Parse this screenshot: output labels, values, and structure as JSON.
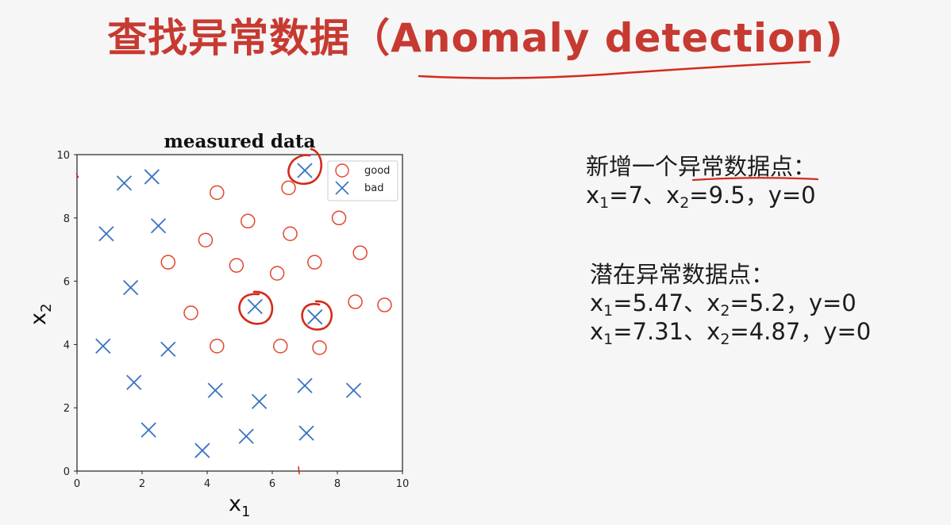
{
  "slide": {
    "title": "查找异常数据（Anomaly detection)"
  },
  "info": {
    "new_point": {
      "heading": "新增一个异常数据点：",
      "line": {
        "x1_label": "x",
        "x1_sub": "1",
        "x1_val": "=7、",
        "x2_label": "x",
        "x2_sub": "2",
        "x2_val": "=9.5，y=0"
      }
    },
    "potential": {
      "heading": "潜在异常数据点：",
      "lines": [
        {
          "x1_label": "x",
          "x1_sub": "1",
          "x1_val": "=5.47、",
          "x2_label": "x",
          "x2_sub": "2",
          "x2_val": "=5.2，y=0"
        },
        {
          "x1_label": "x",
          "x1_sub": "1",
          "x1_val": "=7.31、",
          "x2_label": "x",
          "x2_sub": "2",
          "x2_val": "=4.87，y=0"
        }
      ]
    }
  },
  "colors": {
    "title": "#c73a31",
    "good": "#e2462d",
    "bad": "#3a73bf",
    "annotation": "#d42a1c",
    "text": "#1c1c1c"
  },
  "chart_data": {
    "type": "scatter",
    "title": "measured data",
    "xlabel": "x",
    "xlabel_sub": "1",
    "ylabel": "x",
    "ylabel_sub": "2",
    "xlim": [
      0,
      10
    ],
    "ylim": [
      0,
      10
    ],
    "xticks": [
      0,
      2,
      4,
      6,
      8,
      10
    ],
    "yticks": [
      0,
      2,
      4,
      6,
      8,
      10
    ],
    "grid": false,
    "legend_position": "top-right",
    "series": [
      {
        "name": "good",
        "marker": "circle",
        "points": [
          [
            4.3,
            8.8
          ],
          [
            6.5,
            8.95
          ],
          [
            5.25,
            7.9
          ],
          [
            6.55,
            7.5
          ],
          [
            8.05,
            8.0
          ],
          [
            3.95,
            7.3
          ],
          [
            2.8,
            6.6
          ],
          [
            4.9,
            6.5
          ],
          [
            6.15,
            6.25
          ],
          [
            7.3,
            6.6
          ],
          [
            8.7,
            6.9
          ],
          [
            3.5,
            5.0
          ],
          [
            8.55,
            5.35
          ],
          [
            9.45,
            5.25
          ],
          [
            4.3,
            3.95
          ],
          [
            6.25,
            3.95
          ],
          [
            7.45,
            3.9
          ]
        ]
      },
      {
        "name": "bad",
        "marker": "x",
        "points": [
          [
            1.45,
            9.1
          ],
          [
            2.3,
            9.3
          ],
          [
            0.9,
            7.5
          ],
          [
            2.5,
            7.75
          ],
          [
            1.65,
            5.8
          ],
          [
            0.8,
            3.95
          ],
          [
            2.8,
            3.85
          ],
          [
            1.75,
            2.8
          ],
          [
            4.25,
            2.55
          ],
          [
            5.6,
            2.2
          ],
          [
            7.0,
            2.7
          ],
          [
            8.5,
            2.55
          ],
          [
            2.2,
            1.3
          ],
          [
            3.85,
            0.65
          ],
          [
            5.2,
            1.1
          ],
          [
            7.05,
            1.2
          ],
          [
            7.0,
            9.5
          ],
          [
            5.47,
            5.2
          ],
          [
            7.31,
            4.87
          ]
        ]
      }
    ]
  }
}
